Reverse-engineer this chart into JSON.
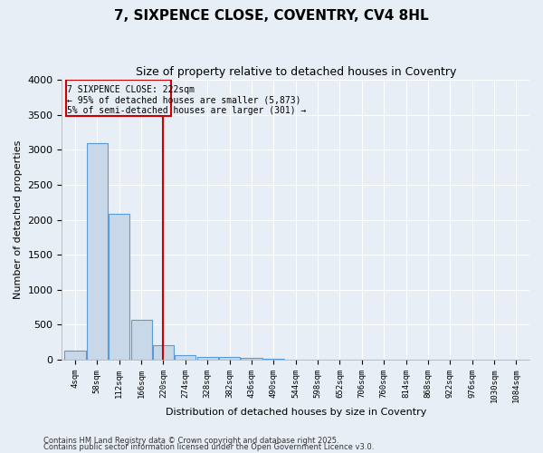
{
  "title": "7, SIXPENCE CLOSE, COVENTRY, CV4 8HL",
  "subtitle": "Size of property relative to detached houses in Coventry",
  "xlabel": "Distribution of detached houses by size in Coventry",
  "ylabel": "Number of detached properties",
  "bar_color": "#c8d8e8",
  "bar_edge_color": "#5b9bd5",
  "categories": [
    "4sqm",
    "58sqm",
    "112sqm",
    "166sqm",
    "220sqm",
    "274sqm",
    "328sqm",
    "382sqm",
    "436sqm",
    "490sqm",
    "544sqm",
    "598sqm",
    "652sqm",
    "706sqm",
    "760sqm",
    "814sqm",
    "868sqm",
    "922sqm",
    "976sqm",
    "1030sqm",
    "1084sqm"
  ],
  "values": [
    130,
    3090,
    2080,
    570,
    210,
    70,
    45,
    35,
    25,
    10,
    3,
    2,
    2,
    1,
    1,
    1,
    1,
    1,
    1,
    1,
    1
  ],
  "ylim": [
    0,
    4000
  ],
  "yticks": [
    0,
    500,
    1000,
    1500,
    2000,
    2500,
    3000,
    3500,
    4000
  ],
  "vline_x": 4.0,
  "annotation_title": "7 SIXPENCE CLOSE: 222sqm",
  "annotation_line1": "← 95% of detached houses are smaller (5,873)",
  "annotation_line2": "5% of semi-detached houses are larger (301) →",
  "footer1": "Contains HM Land Registry data © Crown copyright and database right 2025.",
  "footer2": "Contains public sector information licensed under the Open Government Licence v3.0.",
  "bg_color": "#e8eef5",
  "grid_color": "#d0d8e8",
  "vline_color": "#cc0000"
}
